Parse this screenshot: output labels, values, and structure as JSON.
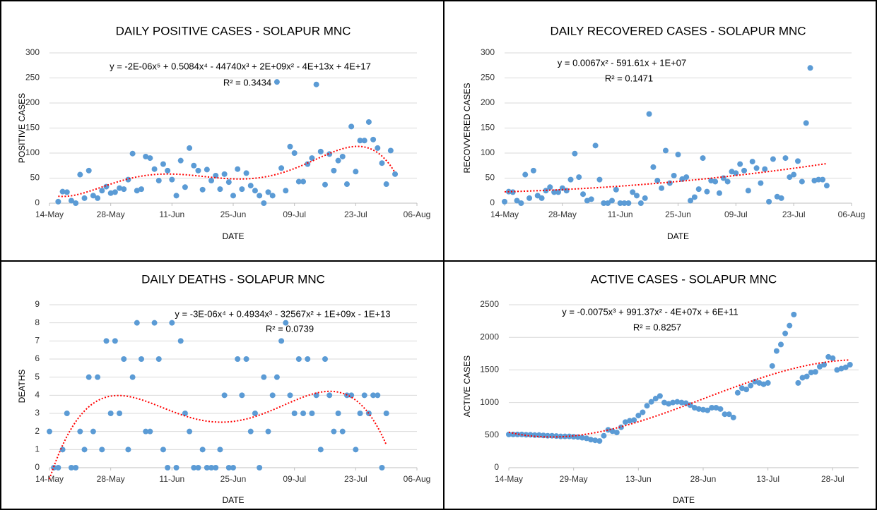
{
  "chart_data": [
    {
      "type": "scatter",
      "title": "DAILY POSITIVE CASES - SOLAPUR MNC",
      "x_label": "DATE",
      "y_label": "POSITIVE CASES",
      "equation": "y = -2E-06x⁵ + 0.5084x⁴ - 44740x³ + 2E+09x² - 4E+13x + 4E+17",
      "r_squared": "R² = 0.3434",
      "trendline_degree": 5,
      "color": "#5b9bd5",
      "trendline_color": "#ff0000",
      "grid": true,
      "xlim": [
        "14-May",
        "06-Aug"
      ],
      "xticks": [
        "14-May",
        "28-May",
        "11-Jun",
        "25-Jun",
        "09-Jul",
        "23-Jul",
        "06-Aug"
      ],
      "ylim": [
        0,
        300
      ],
      "yticks": [
        0,
        50,
        100,
        150,
        200,
        250,
        300
      ],
      "x": [
        "16-May",
        "17-May",
        "18-May",
        "19-May",
        "20-May",
        "21-May",
        "22-May",
        "23-May",
        "24-May",
        "25-May",
        "26-May",
        "27-May",
        "28-May",
        "29-May",
        "30-May",
        "31-May",
        "01-Jun",
        "02-Jun",
        "03-Jun",
        "04-Jun",
        "05-Jun",
        "06-Jun",
        "07-Jun",
        "08-Jun",
        "09-Jun",
        "10-Jun",
        "11-Jun",
        "12-Jun",
        "13-Jun",
        "14-Jun",
        "15-Jun",
        "16-Jun",
        "17-Jun",
        "18-Jun",
        "19-Jun",
        "20-Jun",
        "21-Jun",
        "22-Jun",
        "23-Jun",
        "24-Jun",
        "25-Jun",
        "26-Jun",
        "27-Jun",
        "28-Jun",
        "29-Jun",
        "30-Jun",
        "01-Jul",
        "02-Jul",
        "03-Jul",
        "04-Jul",
        "05-Jul",
        "06-Jul",
        "07-Jul",
        "08-Jul",
        "09-Jul",
        "10-Jul",
        "11-Jul",
        "12-Jul",
        "13-Jul",
        "14-Jul",
        "15-Jul",
        "16-Jul",
        "17-Jul",
        "18-Jul",
        "19-Jul",
        "20-Jul",
        "21-Jul",
        "22-Jul",
        "23-Jul",
        "24-Jul",
        "25-Jul",
        "26-Jul",
        "27-Jul",
        "28-Jul",
        "29-Jul",
        "30-Jul",
        "31-Jul",
        "01-Aug"
      ],
      "values": [
        3,
        23,
        22,
        5,
        0,
        57,
        10,
        65,
        15,
        10,
        25,
        33,
        20,
        22,
        30,
        28,
        47,
        99,
        25,
        28,
        93,
        90,
        68,
        45,
        78,
        65,
        47,
        15,
        85,
        32,
        110,
        75,
        65,
        27,
        67,
        45,
        55,
        28,
        58,
        42,
        15,
        68,
        28,
        60,
        35,
        25,
        15,
        0,
        22,
        15,
        242,
        70,
        25,
        113,
        100,
        43,
        43,
        78,
        90,
        237,
        103,
        37,
        98,
        65,
        85,
        93,
        38,
        153,
        63,
        125,
        125,
        162,
        127,
        110,
        80,
        38,
        105,
        58
      ]
    },
    {
      "type": "scatter",
      "title": "DAILY RECOVERED CASES - SOLAPUR MNC",
      "x_label": "DATE",
      "y_label": "RECOVVERED CASES",
      "equation": "y = 0.0067x² - 591.61x + 1E+07",
      "r_squared": "R² = 0.1471",
      "trendline_degree": 2,
      "color": "#5b9bd5",
      "trendline_color": "#ff0000",
      "grid": true,
      "xlim": [
        "14-May",
        "06-Aug"
      ],
      "xticks": [
        "14-May",
        "28-May",
        "11-Jun",
        "25-Jun",
        "09-Jul",
        "23-Jul",
        "06-Aug"
      ],
      "ylim": [
        0,
        300
      ],
      "yticks": [
        0,
        50,
        100,
        150,
        200,
        250,
        300
      ],
      "x": [
        "14-May",
        "15-May",
        "16-May",
        "17-May",
        "18-May",
        "19-May",
        "20-May",
        "21-May",
        "22-May",
        "23-May",
        "24-May",
        "25-May",
        "26-May",
        "27-May",
        "28-May",
        "29-May",
        "30-May",
        "31-May",
        "01-Jun",
        "02-Jun",
        "03-Jun",
        "04-Jun",
        "05-Jun",
        "06-Jun",
        "07-Jun",
        "08-Jun",
        "09-Jun",
        "10-Jun",
        "11-Jun",
        "12-Jun",
        "13-Jun",
        "14-Jun",
        "15-Jun",
        "16-Jun",
        "17-Jun",
        "18-Jun",
        "19-Jun",
        "20-Jun",
        "21-Jun",
        "22-Jun",
        "23-Jun",
        "24-Jun",
        "25-Jun",
        "26-Jun",
        "27-Jun",
        "28-Jun",
        "29-Jun",
        "30-Jun",
        "01-Jul",
        "02-Jul",
        "03-Jul",
        "04-Jul",
        "05-Jul",
        "06-Jul",
        "07-Jul",
        "08-Jul",
        "09-Jul",
        "10-Jul",
        "11-Jul",
        "12-Jul",
        "13-Jul",
        "14-Jul",
        "15-Jul",
        "16-Jul",
        "17-Jul",
        "18-Jul",
        "19-Jul",
        "20-Jul",
        "21-Jul",
        "22-Jul",
        "23-Jul",
        "24-Jul",
        "25-Jul",
        "26-Jul",
        "27-Jul",
        "28-Jul",
        "29-Jul",
        "30-Jul",
        "31-Jul"
      ],
      "values": [
        3,
        23,
        22,
        5,
        0,
        57,
        10,
        65,
        15,
        10,
        25,
        32,
        22,
        22,
        30,
        25,
        47,
        99,
        52,
        18,
        5,
        8,
        115,
        47,
        0,
        0,
        5,
        27,
        0,
        0,
        0,
        22,
        15,
        0,
        10,
        178,
        72,
        45,
        30,
        105,
        40,
        55,
        97,
        48,
        52,
        5,
        12,
        28,
        90,
        23,
        45,
        43,
        20,
        50,
        43,
        63,
        60,
        78,
        65,
        25,
        83,
        70,
        40,
        68,
        3,
        88,
        13,
        10,
        90,
        52,
        57,
        84,
        43,
        160,
        270,
        45,
        47,
        47,
        35
      ]
    },
    {
      "type": "scatter",
      "title": "DAILY DEATHS - SOLAPUR MNC",
      "x_label": "DATE",
      "y_label": "DEATHS",
      "equation": "y = -3E-06x⁴ + 0.4934x³ - 32567x² + 1E+09x - 1E+13",
      "r_squared": "R² = 0.0739",
      "trendline_degree": 4,
      "color": "#5b9bd5",
      "trendline_color": "#ff0000",
      "grid": true,
      "xlim": [
        "14-May",
        "06-Aug"
      ],
      "xticks": [
        "14-May",
        "28-May",
        "11-Jun",
        "25-Jun",
        "09-Jul",
        "23-Jul",
        "06-Aug"
      ],
      "ylim": [
        0,
        9
      ],
      "yticks": [
        0,
        1,
        2,
        3,
        4,
        5,
        6,
        7,
        8,
        9
      ],
      "x": [
        "14-May",
        "15-May",
        "16-May",
        "17-May",
        "18-May",
        "19-May",
        "20-May",
        "21-May",
        "22-May",
        "23-May",
        "24-May",
        "25-May",
        "26-May",
        "27-May",
        "28-May",
        "29-May",
        "30-May",
        "31-May",
        "01-Jun",
        "02-Jun",
        "03-Jun",
        "04-Jun",
        "05-Jun",
        "06-Jun",
        "07-Jun",
        "08-Jun",
        "09-Jun",
        "10-Jun",
        "11-Jun",
        "12-Jun",
        "13-Jun",
        "14-Jun",
        "15-Jun",
        "16-Jun",
        "17-Jun",
        "18-Jun",
        "19-Jun",
        "20-Jun",
        "21-Jun",
        "22-Jun",
        "23-Jun",
        "24-Jun",
        "25-Jun",
        "26-Jun",
        "27-Jun",
        "28-Jun",
        "29-Jun",
        "30-Jun",
        "01-Jul",
        "02-Jul",
        "03-Jul",
        "04-Jul",
        "05-Jul",
        "06-Jul",
        "07-Jul",
        "08-Jul",
        "09-Jul",
        "10-Jul",
        "11-Jul",
        "12-Jul",
        "13-Jul",
        "14-Jul",
        "15-Jul",
        "16-Jul",
        "17-Jul",
        "18-Jul",
        "19-Jul",
        "20-Jul",
        "21-Jul",
        "22-Jul",
        "23-Jul",
        "24-Jul",
        "25-Jul",
        "26-Jul",
        "27-Jul",
        "28-Jul",
        "29-Jul",
        "30-Jul"
      ],
      "values": [
        2,
        0,
        0,
        1,
        3,
        0,
        0,
        2,
        1,
        5,
        2,
        5,
        1,
        7,
        3,
        7,
        3,
        6,
        1,
        5,
        8,
        6,
        2,
        2,
        8,
        6,
        1,
        0,
        8,
        0,
        7,
        3,
        2,
        0,
        0,
        1,
        0,
        0,
        0,
        1,
        4,
        0,
        0,
        6,
        4,
        6,
        2,
        3,
        0,
        5,
        2,
        4,
        5,
        7,
        8,
        4,
        3,
        6,
        3,
        6,
        3,
        4,
        1,
        6,
        4,
        2,
        3,
        2,
        4,
        4,
        1,
        3,
        4,
        3,
        4,
        4,
        0,
        3
      ]
    },
    {
      "type": "scatter",
      "title": "ACTIVE CASES - SOLAPUR MNC",
      "x_label": "DATE",
      "y_label": "ACTIVE CASES",
      "equation": "y = -0.0075x³ + 991.37x² - 4E+07x + 6E+11",
      "r_squared": "R² = 0.8257",
      "trendline_degree": 3,
      "color": "#5b9bd5",
      "trendline_color": "#ff0000",
      "grid": true,
      "xlim": [
        "14-May",
        "03-Aug"
      ],
      "xticks": [
        "14-May",
        "29-May",
        "13-Jun",
        "28-Jun",
        "13-Jul",
        "28-Jul"
      ],
      "ylim": [
        0,
        2500
      ],
      "yticks": [
        0,
        500,
        1000,
        1500,
        2000,
        2500
      ],
      "x": [
        "14-May",
        "15-May",
        "16-May",
        "17-May",
        "18-May",
        "19-May",
        "20-May",
        "21-May",
        "22-May",
        "23-May",
        "24-May",
        "25-May",
        "26-May",
        "27-May",
        "28-May",
        "29-May",
        "30-May",
        "31-May",
        "01-Jun",
        "02-Jun",
        "03-Jun",
        "04-Jun",
        "05-Jun",
        "06-Jun",
        "07-Jun",
        "08-Jun",
        "09-Jun",
        "10-Jun",
        "11-Jun",
        "12-Jun",
        "13-Jun",
        "14-Jun",
        "15-Jun",
        "16-Jun",
        "17-Jun",
        "18-Jun",
        "19-Jun",
        "20-Jun",
        "21-Jun",
        "22-Jun",
        "23-Jun",
        "24-Jun",
        "25-Jun",
        "26-Jun",
        "27-Jun",
        "28-Jun",
        "29-Jun",
        "30-Jun",
        "01-Jul",
        "02-Jul",
        "03-Jul",
        "04-Jul",
        "05-Jul",
        "06-Jul",
        "07-Jul",
        "08-Jul",
        "09-Jul",
        "10-Jul",
        "11-Jul",
        "12-Jul",
        "13-Jul",
        "14-Jul",
        "15-Jul",
        "16-Jul",
        "17-Jul",
        "18-Jul",
        "19-Jul",
        "20-Jul",
        "21-Jul",
        "22-Jul",
        "23-Jul",
        "24-Jul",
        "25-Jul",
        "26-Jul",
        "27-Jul",
        "28-Jul",
        "29-Jul",
        "30-Jul",
        "31-Jul",
        "01-Aug"
      ],
      "values": [
        510,
        510,
        510,
        510,
        505,
        505,
        500,
        500,
        495,
        490,
        490,
        485,
        480,
        480,
        480,
        475,
        470,
        460,
        450,
        430,
        420,
        410,
        490,
        580,
        560,
        540,
        620,
        700,
        720,
        730,
        800,
        850,
        950,
        1010,
        1060,
        1100,
        1000,
        980,
        1000,
        1010,
        1000,
        990,
        960,
        920,
        900,
        890,
        880,
        920,
        920,
        900,
        820,
        820,
        770,
        1150,
        1220,
        1200,
        1260,
        1320,
        1300,
        1280,
        1300,
        1560,
        1790,
        1890,
        2060,
        2180,
        2350,
        1300,
        1380,
        1400,
        1460,
        1470,
        1550,
        1580,
        1700,
        1680,
        1500,
        1520,
        1540,
        1580
      ]
    }
  ]
}
